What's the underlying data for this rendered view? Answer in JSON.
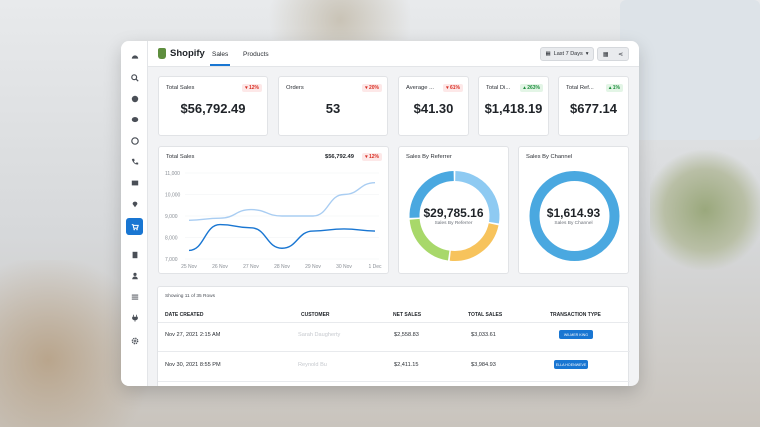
{
  "brand": {
    "name": "Shopify",
    "accent": "#5e8e3e"
  },
  "header": {
    "tabs": [
      {
        "label": "Sales",
        "active": true
      },
      {
        "label": "Products",
        "active": false
      }
    ],
    "date_range": "Last 7 Days"
  },
  "sidebar": {
    "icons": [
      "dashboard-icon",
      "search-icon",
      "pie-chart-icon",
      "chat-icon",
      "message-icon",
      "phone-icon",
      "mail-icon",
      "location-icon",
      "cart-icon",
      "document-icon",
      "user-icon",
      "list-icon",
      "plug-icon",
      "settings-icon"
    ],
    "active_index": 8
  },
  "kpis": [
    {
      "title": "Total Sales",
      "value": "$56,792.49",
      "change": "12%",
      "direction": "down"
    },
    {
      "title": "Orders",
      "value": "53",
      "change": "20%",
      "direction": "down"
    },
    {
      "title": "Average ...",
      "value": "$41.30",
      "change": "61%",
      "direction": "down"
    },
    {
      "title": "Total Di...",
      "value": "$1,418.19",
      "change": "263%",
      "direction": "up"
    },
    {
      "title": "Total Ref...",
      "value": "$677.14",
      "change": "1%",
      "direction": "up"
    }
  ],
  "line_chart": {
    "title": "Total Sales",
    "value": "$56,792.49",
    "change": "12%"
  },
  "chart_data": {
    "type": "line",
    "x": [
      "25 Nov",
      "26 Nov",
      "27 Nov",
      "28 Nov",
      "29 Nov",
      "30 Nov",
      "1 Dec"
    ],
    "yticks": [
      "11,000",
      "10,000",
      "9,000",
      "8,000",
      "7,000"
    ],
    "ylim": [
      7000,
      11000
    ],
    "series": [
      {
        "color": "#a9cdf2",
        "values": [
          8800,
          8900,
          9300,
          9000,
          9000,
          10000,
          10550
        ]
      },
      {
        "color": "#1976d2",
        "values": [
          7400,
          8600,
          8450,
          7500,
          8300,
          8400,
          8300
        ]
      }
    ]
  },
  "donuts": [
    {
      "title": "Sales By Referrer",
      "value": "$29,785.16",
      "label": "Sales By Referrer",
      "segments": [
        {
          "color": "#8ecaf2",
          "value": 28
        },
        {
          "color": "#f7c35c",
          "value": 24
        },
        {
          "color": "#a8d86a",
          "value": 22
        },
        {
          "color": "#4aa8e0",
          "value": 26
        }
      ]
    },
    {
      "title": "Sales By Channel",
      "value": "$1,614.93",
      "label": "Sales By Channel",
      "segments": [
        {
          "color": "#4aa8e0",
          "value": 100
        }
      ]
    }
  ],
  "table": {
    "meta": "Showing 11 of 35 Rows",
    "columns": [
      "DATE CREATED",
      "CUSTOMER",
      "NET SALES",
      "TOTAL SALES",
      "TRANSACTION TYPE"
    ],
    "rows": [
      {
        "date": "Nov 27, 2021 2:15 AM",
        "customer": "Sarah Daugherty",
        "net": "$2,558.83",
        "total": "$3,033.61",
        "type": "WILMER KING"
      },
      {
        "date": "Nov 30, 2021 8:55 PM",
        "customer": "Reynold Bu",
        "net": "$2,411.15",
        "total": "$3,984.93",
        "type": "ELLA HOENWEVE"
      }
    ]
  }
}
